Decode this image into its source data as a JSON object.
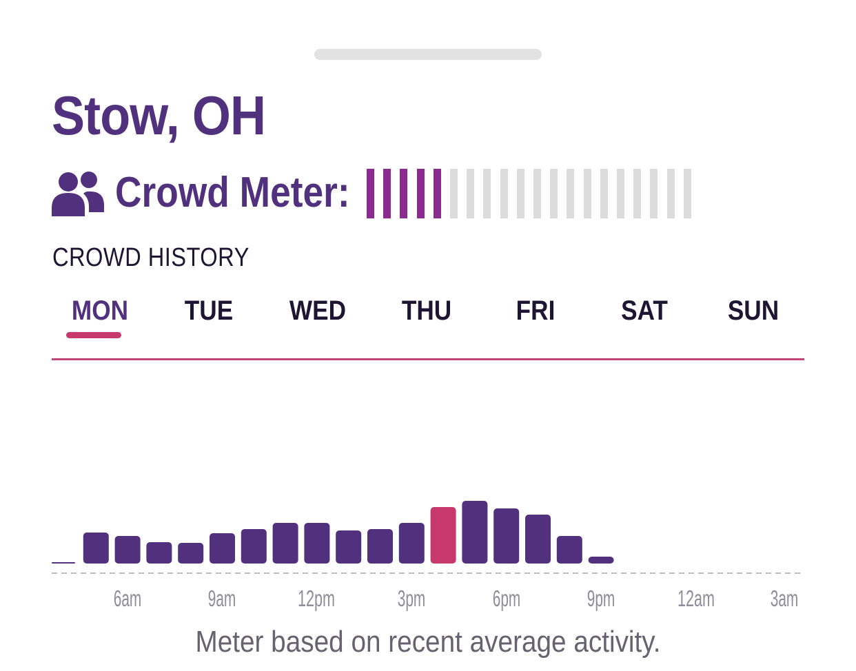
{
  "location": {
    "title": "Stow, OH"
  },
  "crowd_meter": {
    "label": "Crowd Meter:",
    "icon": "people-icon",
    "level": 5,
    "total": 20,
    "active_color": "#8b2a8f",
    "inactive_color": "#dcdcdc"
  },
  "history": {
    "title": "CROWD HISTORY",
    "tabs": [
      {
        "label": "MON",
        "active": true
      },
      {
        "label": "TUE",
        "active": false
      },
      {
        "label": "WED",
        "active": false
      },
      {
        "label": "THU",
        "active": false
      },
      {
        "label": "FRI",
        "active": false
      },
      {
        "label": "SAT",
        "active": false
      },
      {
        "label": "SUN",
        "active": false
      }
    ],
    "accent_color": "#c8396b"
  },
  "chart_data": {
    "type": "bar",
    "categories": [
      "4am",
      "5am",
      "6am",
      "7am",
      "8am",
      "9am",
      "10am",
      "11am",
      "12pm",
      "1pm",
      "2pm",
      "3pm",
      "4pm",
      "5pm",
      "6pm",
      "7pm",
      "8pm",
      "9pm",
      "10pm",
      "11pm",
      "12am",
      "1am",
      "2am",
      "3am"
    ],
    "values": [
      2,
      45,
      40,
      31,
      30,
      44,
      50,
      59,
      59,
      48,
      50,
      59,
      82,
      91,
      80,
      71,
      40,
      10,
      0,
      0,
      0,
      0,
      0,
      0
    ],
    "highlight_index": 12,
    "bar_color": "#51307e",
    "highlight_color": "#c8396b",
    "x_tick_labels": [
      "6am",
      "9am",
      "12pm",
      "3pm",
      "6pm",
      "9pm",
      "12am",
      "3am"
    ],
    "ylim": [
      0,
      100
    ],
    "grid": false,
    "baseline": "dashed"
  },
  "footnote": "Meter based on recent average activity."
}
